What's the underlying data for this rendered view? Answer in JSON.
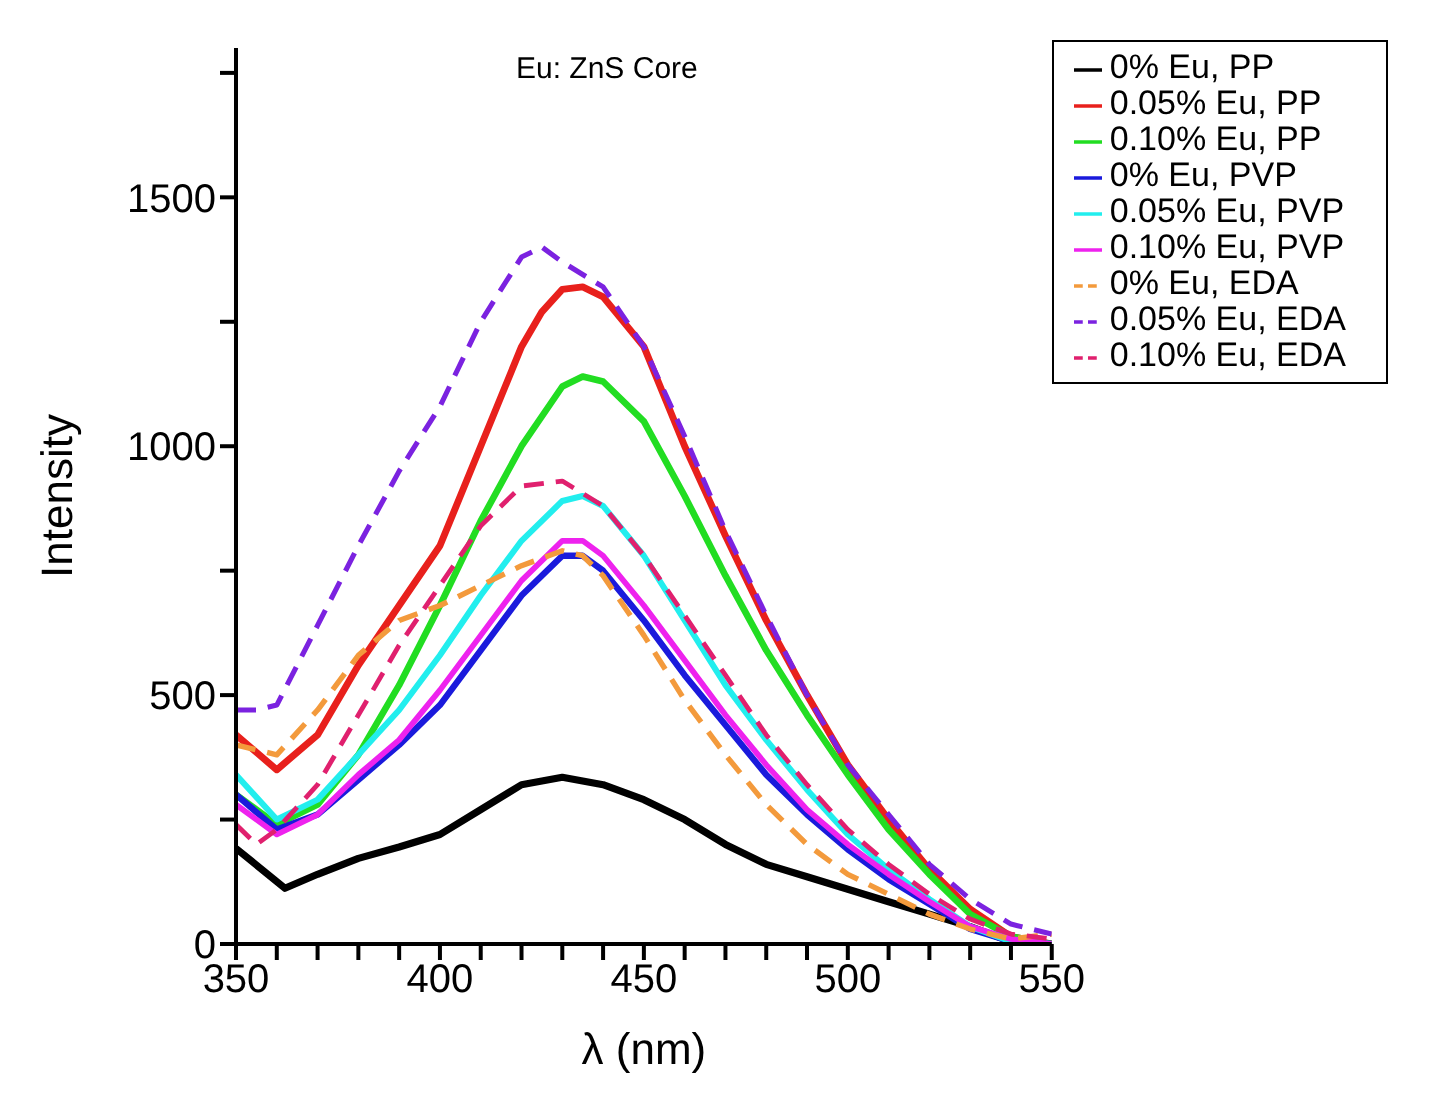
{
  "chart_data": {
    "type": "line",
    "title": "Eu: ZnS Core",
    "xlabel": "λ (nm)",
    "ylabel": "Intensity",
    "xlim": [
      350,
      550
    ],
    "ylim": [
      0,
      1800
    ],
    "xticks": [
      350,
      {
        "value": 360,
        "label": null
      },
      {
        "value": 370,
        "label": null
      },
      {
        "value": 380,
        "label": null
      },
      {
        "value": 390,
        "label": null
      },
      400,
      {
        "value": 410,
        "label": null
      },
      {
        "value": 420,
        "label": null
      },
      {
        "value": 430,
        "label": null
      },
      {
        "value": 440,
        "label": null
      },
      450,
      {
        "value": 460,
        "label": null
      },
      {
        "value": 470,
        "label": null
      },
      {
        "value": 480,
        "label": null
      },
      {
        "value": 490,
        "label": null
      },
      500,
      {
        "value": 510,
        "label": null
      },
      {
        "value": 520,
        "label": null
      },
      {
        "value": 530,
        "label": null
      },
      {
        "value": 540,
        "label": null
      },
      550
    ],
    "yticks": [
      0,
      {
        "value": 250,
        "label": null
      },
      500,
      {
        "value": 750,
        "label": null
      },
      1000,
      {
        "value": 1250,
        "label": null
      },
      1500,
      {
        "value": 1750,
        "label": null
      }
    ],
    "grid": false,
    "legend": "top right",
    "marker": "none",
    "series": [
      {
        "name": "0% Eu, PP",
        "color": "#000000",
        "line_style": "solid",
        "x": [
          350,
          362,
          370,
          380,
          390,
          400,
          410,
          420,
          430,
          440,
          450,
          460,
          470,
          480,
          490,
          500,
          510,
          520,
          530,
          540,
          550
        ],
        "values": [
          192,
          112,
          140,
          172,
          195,
          220,
          270,
          320,
          335,
          320,
          290,
          250,
          200,
          160,
          135,
          110,
          85,
          60,
          35,
          5,
          0
        ]
      },
      {
        "name": "0.05% Eu, PP",
        "color": "#e8201c",
        "line_style": "solid",
        "x": [
          350,
          360,
          370,
          380,
          390,
          400,
          410,
          420,
          425,
          430,
          435,
          440,
          450,
          460,
          470,
          480,
          490,
          500,
          510,
          520,
          530,
          540,
          550
        ],
        "values": [
          420,
          350,
          420,
          560,
          680,
          800,
          1000,
          1200,
          1270,
          1315,
          1320,
          1300,
          1200,
          1000,
          820,
          650,
          500,
          360,
          250,
          150,
          70,
          15,
          0
        ]
      },
      {
        "name": "0.10% Eu, PP",
        "color": "#22dd22",
        "line_style": "solid",
        "x": [
          350,
          360,
          370,
          380,
          390,
          400,
          410,
          420,
          430,
          435,
          440,
          450,
          460,
          470,
          480,
          490,
          500,
          510,
          520,
          530,
          540,
          550
        ],
        "values": [
          300,
          240,
          280,
          380,
          520,
          680,
          850,
          1000,
          1120,
          1140,
          1130,
          1050,
          900,
          740,
          590,
          460,
          340,
          230,
          140,
          60,
          15,
          0
        ]
      },
      {
        "name": "0% Eu, PVP",
        "color": "#1a1adc",
        "line_style": "solid",
        "x": [
          350,
          360,
          370,
          380,
          390,
          400,
          410,
          420,
          430,
          435,
          440,
          450,
          460,
          470,
          480,
          490,
          500,
          510,
          520,
          530,
          540,
          550
        ],
        "values": [
          300,
          230,
          260,
          330,
          400,
          480,
          590,
          700,
          780,
          780,
          750,
          650,
          540,
          440,
          340,
          260,
          190,
          130,
          80,
          30,
          5,
          0
        ]
      },
      {
        "name": "0.05% Eu, PVP",
        "color": "#22eeee",
        "line_style": "solid",
        "x": [
          350,
          360,
          370,
          380,
          390,
          400,
          410,
          420,
          430,
          435,
          440,
          450,
          460,
          470,
          480,
          490,
          500,
          510,
          520,
          530,
          540,
          550
        ],
        "values": [
          340,
          250,
          290,
          380,
          470,
          580,
          700,
          810,
          890,
          900,
          880,
          780,
          650,
          520,
          410,
          310,
          220,
          150,
          90,
          35,
          5,
          0
        ]
      },
      {
        "name": "0.10% Eu, PVP",
        "color": "#ee22ee",
        "line_style": "solid",
        "x": [
          350,
          360,
          370,
          380,
          390,
          400,
          410,
          420,
          430,
          435,
          440,
          450,
          460,
          470,
          480,
          490,
          500,
          510,
          520,
          530,
          540,
          550
        ],
        "values": [
          280,
          220,
          260,
          340,
          410,
          510,
          620,
          730,
          810,
          810,
          780,
          680,
          570,
          460,
          360,
          270,
          200,
          140,
          85,
          35,
          10,
          0
        ]
      },
      {
        "name": "0% Eu, EDA",
        "color": "#f39a3c",
        "line_style": "dashed",
        "x": [
          350,
          360,
          370,
          380,
          390,
          400,
          410,
          420,
          430,
          435,
          440,
          450,
          460,
          470,
          480,
          490,
          500,
          510,
          520,
          530,
          540,
          550
        ],
        "values": [
          400,
          380,
          470,
          580,
          650,
          680,
          720,
          760,
          790,
          780,
          740,
          620,
          490,
          380,
          280,
          200,
          140,
          100,
          60,
          30,
          10,
          20
        ]
      },
      {
        "name": "0.05% Eu,  EDA",
        "color": "#7b22e0",
        "line_style": "dashed",
        "x": [
          350,
          355,
          360,
          370,
          380,
          390,
          400,
          410,
          420,
          425,
          430,
          440,
          450,
          460,
          470,
          480,
          490,
          500,
          510,
          520,
          530,
          540,
          550
        ],
        "values": [
          470,
          470,
          480,
          640,
          800,
          950,
          1080,
          1250,
          1380,
          1400,
          1370,
          1320,
          1200,
          1020,
          830,
          660,
          500,
          360,
          260,
          160,
          90,
          40,
          20
        ]
      },
      {
        "name": "0.10% Eu, EDA",
        "color": "#e0206e",
        "line_style": "dashed",
        "x": [
          350,
          355,
          360,
          370,
          380,
          390,
          400,
          410,
          420,
          430,
          440,
          450,
          460,
          470,
          480,
          490,
          500,
          510,
          520,
          530,
          540,
          550
        ],
        "values": [
          240,
          200,
          230,
          320,
          460,
          600,
          720,
          840,
          920,
          930,
          880,
          780,
          660,
          540,
          420,
          320,
          230,
          160,
          100,
          50,
          20,
          10
        ]
      }
    ]
  }
}
